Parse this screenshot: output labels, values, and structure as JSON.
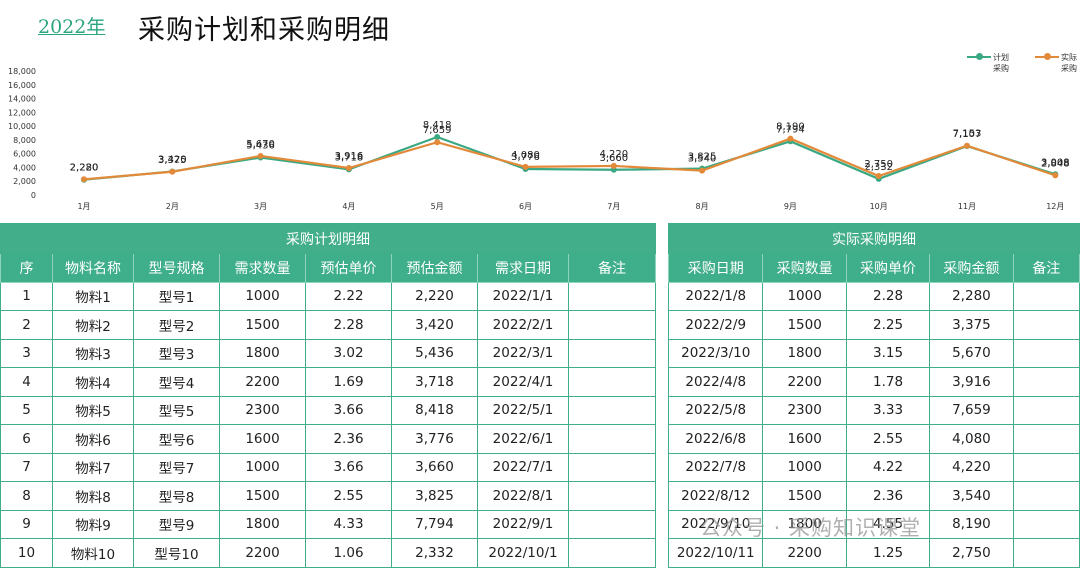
{
  "header": {
    "year": "2022年",
    "title": "采购计划和采购明细"
  },
  "colors": {
    "plan": "#3aa882",
    "actual": "#e38a3a",
    "header_bg": "#3fae8a"
  },
  "chart_data": {
    "type": "line",
    "categories": [
      "1月",
      "2月",
      "3月",
      "4月",
      "5月",
      "6月",
      "7月",
      "8月",
      "9月",
      "10月",
      "11月",
      "12月"
    ],
    "series": [
      {
        "name": "计划采购",
        "legend": [
          "计划",
          "采购"
        ],
        "values": [
          2220,
          3420,
          5436,
          3718,
          8418,
          3776,
          3660,
          3825,
          7794,
          2332,
          7107,
          3008
        ]
      },
      {
        "name": "实际采购",
        "legend": [
          "实际",
          "采购"
        ],
        "values": [
          2280,
          3375,
          5670,
          3916,
          7659,
          4080,
          4220,
          3540,
          8190,
          2750,
          7153,
          2848
        ]
      }
    ],
    "y_ticks": [
      "18,000",
      "16,000",
      "14,000",
      "12,000",
      "10,000",
      "8,000",
      "6,000",
      "4,000",
      "2,000",
      "0"
    ],
    "ylim": [
      0,
      18000
    ]
  },
  "plan_table": {
    "caption": "采购计划明细",
    "headers": [
      "序",
      "物料名称",
      "型号规格",
      "需求数量",
      "预估单价",
      "预估金额",
      "需求日期",
      "备注"
    ],
    "rows": [
      [
        "1",
        "物料1",
        "型号1",
        "1000",
        "2.22",
        "2,220",
        "2022/1/1",
        ""
      ],
      [
        "2",
        "物料2",
        "型号2",
        "1500",
        "2.28",
        "3,420",
        "2022/2/1",
        ""
      ],
      [
        "3",
        "物料3",
        "型号3",
        "1800",
        "3.02",
        "5,436",
        "2022/3/1",
        ""
      ],
      [
        "4",
        "物料4",
        "型号4",
        "2200",
        "1.69",
        "3,718",
        "2022/4/1",
        ""
      ],
      [
        "5",
        "物料5",
        "型号5",
        "2300",
        "3.66",
        "8,418",
        "2022/5/1",
        ""
      ],
      [
        "6",
        "物料6",
        "型号6",
        "1600",
        "2.36",
        "3,776",
        "2022/6/1",
        ""
      ],
      [
        "7",
        "物料7",
        "型号7",
        "1000",
        "3.66",
        "3,660",
        "2022/7/1",
        ""
      ],
      [
        "8",
        "物料8",
        "型号8",
        "1500",
        "2.55",
        "3,825",
        "2022/8/1",
        ""
      ],
      [
        "9",
        "物料9",
        "型号9",
        "1800",
        "4.33",
        "7,794",
        "2022/9/1",
        ""
      ],
      [
        "10",
        "物料10",
        "型号10",
        "2200",
        "1.06",
        "2,332",
        "2022/10/1",
        ""
      ]
    ]
  },
  "actual_table": {
    "caption": "实际采购明细",
    "headers": [
      "采购日期",
      "采购数量",
      "采购单价",
      "采购金额",
      "备注"
    ],
    "rows": [
      [
        "2022/1/8",
        "1000",
        "2.28",
        "2,280",
        ""
      ],
      [
        "2022/2/9",
        "1500",
        "2.25",
        "3,375",
        ""
      ],
      [
        "2022/3/10",
        "1800",
        "3.15",
        "5,670",
        ""
      ],
      [
        "2022/4/8",
        "2200",
        "1.78",
        "3,916",
        ""
      ],
      [
        "2022/5/8",
        "2300",
        "3.33",
        "7,659",
        ""
      ],
      [
        "2022/6/8",
        "1600",
        "2.55",
        "4,080",
        ""
      ],
      [
        "2022/7/8",
        "1000",
        "4.22",
        "4,220",
        ""
      ],
      [
        "2022/8/12",
        "1500",
        "2.36",
        "3,540",
        ""
      ],
      [
        "2022/9/10",
        "1800",
        "4.55",
        "8,190",
        ""
      ],
      [
        "2022/10/11",
        "2200",
        "1.25",
        "2,750",
        ""
      ]
    ]
  },
  "watermark": "公众号 · 采购知识课堂"
}
